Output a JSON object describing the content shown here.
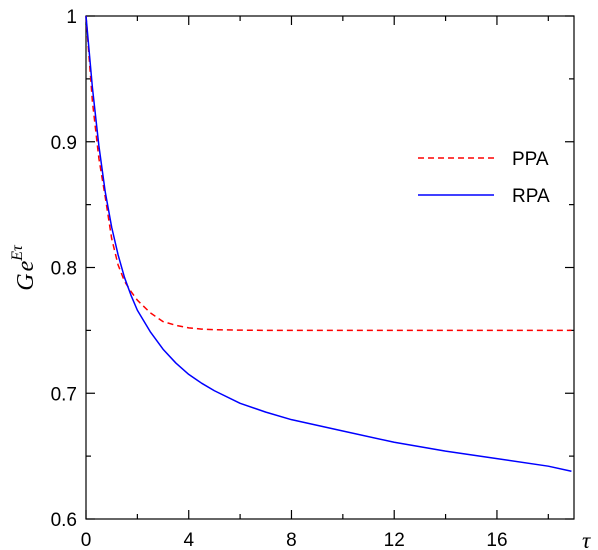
{
  "chart_data": {
    "type": "line",
    "title": "",
    "xlabel": "τ",
    "ylabel": {
      "base": "G",
      "mid": "e",
      "sup": "Eτ"
    },
    "xlim": [
      0,
      19
    ],
    "ylim": [
      0.6,
      1.0
    ],
    "x_ticks": [
      0,
      4,
      8,
      12,
      16
    ],
    "x_tick_labels": [
      "0",
      "4",
      "8",
      "12",
      "16"
    ],
    "x_minor_ticks": [
      2,
      6,
      10,
      14,
      18
    ],
    "y_ticks": [
      0.6,
      0.7,
      0.8,
      0.9,
      1.0
    ],
    "y_tick_labels": [
      "0.6",
      "0.7",
      "0.8",
      "0.9",
      "1"
    ],
    "y_minor_ticks": [
      0.65,
      0.75,
      0.85,
      0.95
    ],
    "grid": false,
    "legend_position": "right",
    "series": [
      {
        "name": "PPA",
        "color": "#ff0000",
        "style": "dashed",
        "x": [
          0,
          0.25,
          0.5,
          0.75,
          1.0,
          1.25,
          1.5,
          1.75,
          2.0,
          2.5,
          3.0,
          3.5,
          4.0,
          4.5,
          5.0,
          6.0,
          7.0,
          8.0,
          10.0,
          12.0,
          14.0,
          16.0,
          18.0,
          18.9
        ],
        "y": [
          1.0,
          0.932,
          0.887,
          0.856,
          0.823,
          0.802,
          0.789,
          0.781,
          0.774,
          0.764,
          0.757,
          0.754,
          0.752,
          0.751,
          0.7505,
          0.7502,
          0.75,
          0.75,
          0.75,
          0.75,
          0.75,
          0.75,
          0.75,
          0.75
        ]
      },
      {
        "name": "RPA",
        "color": "#0000ff",
        "style": "solid",
        "x": [
          0,
          0.25,
          0.5,
          0.75,
          1.0,
          1.25,
          1.5,
          1.75,
          2.0,
          2.5,
          3.0,
          3.5,
          4.0,
          4.5,
          5.0,
          6.0,
          7.0,
          8.0,
          10.0,
          12.0,
          14.0,
          16.0,
          18.0,
          18.9
        ],
        "y": [
          1.0,
          0.943,
          0.897,
          0.86,
          0.832,
          0.81,
          0.792,
          0.778,
          0.766,
          0.749,
          0.735,
          0.724,
          0.715,
          0.708,
          0.702,
          0.692,
          0.685,
          0.679,
          0.67,
          0.661,
          0.654,
          0.648,
          0.642,
          0.638
        ]
      }
    ]
  }
}
